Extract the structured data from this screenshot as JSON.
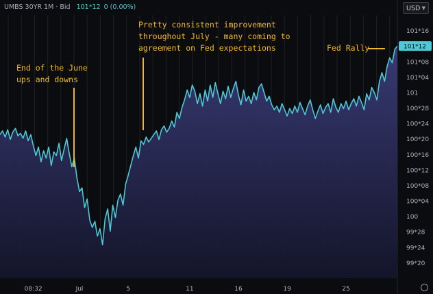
{
  "header": {
    "instrument": "UMBS 30YR 1M · Bid",
    "price": "101*12",
    "change": "0 (0.00%)"
  },
  "currency": {
    "label": "USD",
    "caret": "▼"
  },
  "annotations": {
    "june": "End of the June\nups and downs",
    "july": "Pretty consistent improvement\nthroughout July - many coming to\nagreement on Fed expectations",
    "fed": "Fed Rally"
  },
  "colors": {
    "line": "#4ec9d6",
    "annotation": "#f2b824",
    "price_tag": "#4ec9d6",
    "grid": "#1e2127"
  },
  "chart_data": {
    "type": "area",
    "y_unit": "price in 32nds",
    "ylim": [
      99.5,
      101.625
    ],
    "y_ticks": [
      {
        "v": 99.625,
        "label": "99*20"
      },
      {
        "v": 99.75,
        "label": "99*24"
      },
      {
        "v": 99.875,
        "label": "99*28"
      },
      {
        "v": 100.0,
        "label": "100"
      },
      {
        "v": 100.125,
        "label": "100*04"
      },
      {
        "v": 100.25,
        "label": "100*08"
      },
      {
        "v": 100.375,
        "label": "100*12"
      },
      {
        "v": 100.5,
        "label": "100*16"
      },
      {
        "v": 100.625,
        "label": "100*20"
      },
      {
        "v": 100.75,
        "label": "100*24"
      },
      {
        "v": 100.875,
        "label": "100*28"
      },
      {
        "v": 101.0,
        "label": "101"
      },
      {
        "v": 101.125,
        "label": "101*04"
      },
      {
        "v": 101.25,
        "label": "101*08"
      },
      {
        "v": 101.5,
        "label": "101*16"
      }
    ],
    "x_ticks": [
      {
        "i": 13,
        "label": "08:32"
      },
      {
        "i": 31,
        "label": "Jul"
      },
      {
        "i": 50,
        "label": "5"
      },
      {
        "i": 74,
        "label": "11"
      },
      {
        "i": 93,
        "label": "16"
      },
      {
        "i": 112,
        "label": "19"
      },
      {
        "i": 135,
        "label": "25"
      }
    ],
    "last_price": {
      "v": 101.375,
      "label": "101*12"
    },
    "values": [
      100.66,
      100.69,
      100.64,
      100.7,
      100.62,
      100.68,
      100.71,
      100.65,
      100.67,
      100.63,
      100.69,
      100.61,
      100.66,
      100.57,
      100.49,
      100.56,
      100.44,
      100.53,
      100.47,
      100.56,
      100.41,
      100.52,
      100.49,
      100.59,
      100.45,
      100.54,
      100.63,
      100.51,
      100.4,
      100.47,
      100.31,
      100.2,
      100.23,
      100.07,
      100.14,
      99.97,
      99.91,
      99.96,
      99.84,
      99.9,
      99.77,
      99.98,
      100.06,
      99.88,
      100.09,
      99.99,
      100.13,
      100.18,
      100.09,
      100.26,
      100.33,
      100.41,
      100.49,
      100.56,
      100.47,
      100.61,
      100.58,
      100.64,
      100.6,
      100.63,
      100.66,
      100.69,
      100.62,
      100.7,
      100.73,
      100.68,
      100.71,
      100.77,
      100.72,
      100.84,
      100.79,
      100.88,
      100.94,
      101.02,
      100.96,
      101.06,
      101.01,
      100.91,
      100.99,
      100.89,
      101.02,
      100.93,
      101.06,
      100.96,
      101.08,
      100.99,
      100.91,
      101.01,
      100.95,
      101.05,
      100.96,
      101.03,
      101.09,
      100.98,
      100.9,
      101.02,
      100.93,
      100.97,
      100.91,
      101.0,
      100.94,
      101.04,
      101.07,
      101.0,
      100.93,
      100.97,
      100.9,
      100.86,
      100.89,
      100.84,
      100.91,
      100.86,
      100.81,
      100.87,
      100.83,
      100.89,
      100.84,
      100.92,
      100.87,
      100.82,
      100.89,
      100.94,
      100.86,
      100.79,
      100.85,
      100.9,
      100.83,
      100.88,
      100.91,
      100.84,
      100.95,
      100.88,
      100.84,
      100.91,
      100.87,
      100.93,
      100.86,
      100.91,
      100.95,
      100.89,
      100.97,
      100.92,
      100.86,
      100.99,
      100.94,
      101.04,
      101.0,
      100.94,
      101.09,
      101.16,
      101.09,
      101.21,
      101.28,
      101.24,
      101.35,
      101.375
    ]
  }
}
